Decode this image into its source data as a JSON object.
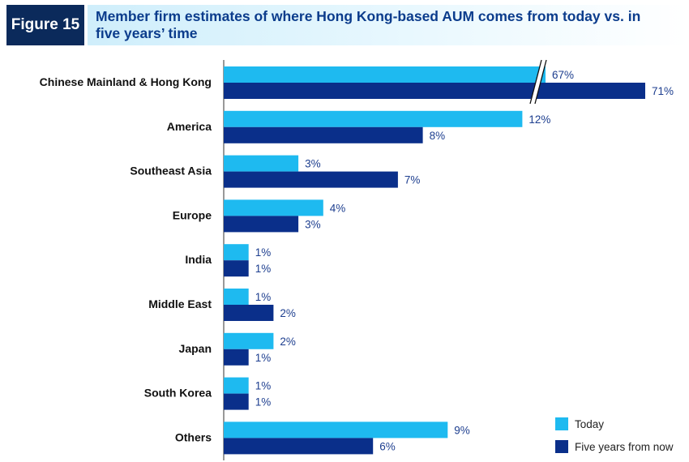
{
  "figure": {
    "tag": "Figure 15",
    "title": "Member firm estimates of where Hong Kong-based AUM comes from today vs. in five years’ time"
  },
  "colors": {
    "today": "#1ebaf0",
    "five_years": "#0a2f8a",
    "label": "#1d3e8f",
    "tag_bg": "#0b2a5b"
  },
  "chart_data": {
    "type": "bar",
    "orientation": "horizontal",
    "title": "Member firm estimates of where Hong Kong-based AUM comes from today vs. in five years’ time",
    "categories": [
      "Chinese Mainland & Hong Kong",
      "America",
      "Southeast Asia",
      "Europe",
      "India",
      "Middle East",
      "Japan",
      "South Korea",
      "Others"
    ],
    "series": [
      {
        "name": "Today",
        "values": [
          67,
          12,
          3,
          4,
          1,
          1,
          2,
          1,
          9
        ],
        "labels": [
          "67%",
          "12%",
          "3%",
          "4%",
          "1%",
          "1%",
          "2%",
          "1%",
          "9%"
        ]
      },
      {
        "name": "Five years from now",
        "values": [
          71,
          8,
          7,
          3,
          1,
          2,
          1,
          1,
          6
        ],
        "labels": [
          "71%",
          "8%",
          "7%",
          "3%",
          "1%",
          "2%",
          "1%",
          "1%",
          "6%"
        ]
      }
    ],
    "axis_break": {
      "category": "Chinese Mainland & Hong Kong",
      "note": "axis break on first category"
    },
    "legend": {
      "position": "bottom-right",
      "entries": [
        "Today",
        "Five years from now"
      ]
    },
    "xlabel": "",
    "ylabel": "",
    "grid": false
  }
}
